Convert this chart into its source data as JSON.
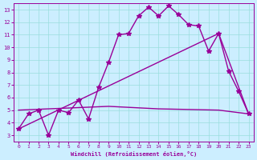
{
  "xlabel": "Windchill (Refroidissement éolien,°C)",
  "background_color": "#cceeff",
  "line_color": "#990099",
  "xlim": [
    -0.5,
    23.5
  ],
  "ylim": [
    2.5,
    13.5
  ],
  "xticks": [
    0,
    1,
    2,
    3,
    4,
    5,
    6,
    7,
    8,
    9,
    10,
    11,
    12,
    13,
    14,
    15,
    16,
    17,
    18,
    19,
    20,
    21,
    22,
    23
  ],
  "yticks": [
    3,
    4,
    5,
    6,
    7,
    8,
    9,
    10,
    11,
    12,
    13
  ],
  "grid_color": "#99dddd",
  "series": [
    {
      "x": [
        0,
        1,
        2,
        3,
        4,
        5,
        6,
        7,
        8,
        9,
        10,
        11,
        12,
        13,
        14,
        15,
        16,
        17,
        18,
        19,
        20,
        21,
        22,
        23
      ],
      "y": [
        3.5,
        4.7,
        5.0,
        3.0,
        5.0,
        4.8,
        5.8,
        4.3,
        6.8,
        8.8,
        11.0,
        11.1,
        12.5,
        13.2,
        12.5,
        13.3,
        12.6,
        11.8,
        11.7,
        9.7,
        11.1,
        8.1,
        6.5,
        4.7
      ],
      "marker": "*",
      "markersize": 4,
      "linewidth": 1.0
    },
    {
      "x": [
        0,
        20,
        23
      ],
      "y": [
        3.5,
        11.1,
        4.7
      ],
      "marker": null,
      "markersize": 0,
      "linewidth": 1.0
    },
    {
      "x": [
        0,
        9,
        14,
        20,
        23
      ],
      "y": [
        5.0,
        5.3,
        5.1,
        5.0,
        4.7
      ],
      "marker": null,
      "markersize": 0,
      "linewidth": 1.0
    }
  ]
}
